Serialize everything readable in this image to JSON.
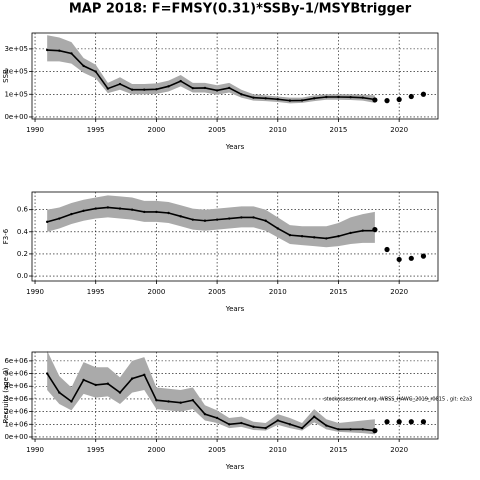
{
  "title": "MAP 2018: F=FMSY(0.31)*SSBy-1/MSYBtrigger",
  "chart_data": [
    {
      "type": "line",
      "ylabel": "SSB",
      "xlabel": "Years",
      "x": [
        1991,
        1992,
        1993,
        1994,
        1995,
        1996,
        1997,
        1998,
        1999,
        2000,
        2001,
        2002,
        2003,
        2004,
        2005,
        2006,
        2007,
        2008,
        2009,
        2010,
        2011,
        2012,
        2013,
        2014,
        2015,
        2016,
        2017,
        2018
      ],
      "values": [
        295000,
        292000,
        280000,
        225000,
        200000,
        125000,
        145000,
        120000,
        120000,
        122000,
        135000,
        158000,
        127000,
        128000,
        117000,
        128000,
        100000,
        85000,
        82000,
        78000,
        72000,
        73000,
        82000,
        88000,
        88000,
        87000,
        85000,
        77000
      ],
      "upper": [
        360000,
        350000,
        330000,
        260000,
        230000,
        150000,
        175000,
        145000,
        145000,
        148000,
        160000,
        185000,
        150000,
        150000,
        140000,
        150000,
        120000,
        100000,
        95000,
        90000,
        85000,
        85000,
        95000,
        100000,
        100000,
        100000,
        98000,
        95000
      ],
      "lower": [
        245000,
        245000,
        235000,
        195000,
        170000,
        105000,
        120000,
        100000,
        100000,
        102000,
        112000,
        135000,
        108000,
        108000,
        98000,
        108000,
        85000,
        72000,
        70000,
        66000,
        60000,
        62000,
        70000,
        76000,
        76000,
        75000,
        72000,
        62000
      ],
      "projection_x": [
        2018,
        2019,
        2020,
        2021,
        2022
      ],
      "projection_values": [
        75000,
        72000,
        77000,
        90000,
        100000
      ],
      "color": "#000000",
      "band_color": "#aaaaaa",
      "grid": true,
      "xlim": [
        1989.75,
        2023.2
      ],
      "xticks": [
        1990,
        1995,
        2000,
        2005,
        2010,
        2015,
        2020
      ],
      "ylim": [
        -9000,
        370000
      ],
      "yticks": [
        {
          "value": 0,
          "label": "0e+00"
        },
        {
          "value": 100000,
          "label": "1e+05"
        },
        {
          "value": 200000,
          "label": "2e+05"
        },
        {
          "value": 300000,
          "label": "3e+05"
        }
      ]
    },
    {
      "type": "line",
      "ylabel": "F3-6",
      "xlabel": "Years",
      "x": [
        1991,
        1992,
        1993,
        1994,
        1995,
        1996,
        1997,
        1998,
        1999,
        2000,
        2001,
        2002,
        2003,
        2004,
        2005,
        2006,
        2007,
        2008,
        2009,
        2010,
        2011,
        2012,
        2013,
        2014,
        2015,
        2016,
        2017,
        2018
      ],
      "values": [
        0.49,
        0.52,
        0.56,
        0.59,
        0.61,
        0.62,
        0.61,
        0.6,
        0.58,
        0.58,
        0.57,
        0.54,
        0.51,
        0.5,
        0.51,
        0.52,
        0.53,
        0.53,
        0.5,
        0.43,
        0.37,
        0.36,
        0.35,
        0.34,
        0.36,
        0.39,
        0.41,
        0.41
      ],
      "upper": [
        0.6,
        0.62,
        0.66,
        0.69,
        0.71,
        0.73,
        0.72,
        0.71,
        0.68,
        0.68,
        0.67,
        0.64,
        0.61,
        0.6,
        0.61,
        0.62,
        0.63,
        0.63,
        0.6,
        0.53,
        0.46,
        0.45,
        0.45,
        0.45,
        0.48,
        0.53,
        0.56,
        0.58
      ],
      "lower": [
        0.4,
        0.43,
        0.47,
        0.5,
        0.52,
        0.53,
        0.52,
        0.51,
        0.49,
        0.49,
        0.48,
        0.45,
        0.42,
        0.41,
        0.42,
        0.43,
        0.44,
        0.44,
        0.41,
        0.35,
        0.29,
        0.28,
        0.27,
        0.26,
        0.27,
        0.29,
        0.3,
        0.3
      ],
      "projection_x": [
        2018,
        2019,
        2020,
        2021,
        2022
      ],
      "projection_values": [
        0.42,
        0.24,
        0.15,
        0.16,
        0.18
      ],
      "color": "#000000",
      "band_color": "#aaaaaa",
      "grid": true,
      "xlim": [
        1989.75,
        2023.2
      ],
      "xticks": [
        1990,
        1995,
        2000,
        2005,
        2010,
        2015,
        2020
      ],
      "ylim": [
        -0.045,
        0.76
      ],
      "yticks": [
        {
          "value": 0,
          "label": "0.0"
        },
        0.2,
        0.4,
        0.6
      ]
    },
    {
      "type": "line",
      "ylabel": "Recruits (age 0)",
      "xlabel": "Years",
      "annotation": "stockassessment.org, WBSS_HAWG_2019_r0815 , git: e2a3",
      "x": [
        1991,
        1992,
        1993,
        1994,
        1995,
        1996,
        1997,
        1998,
        1999,
        2000,
        2001,
        2002,
        2003,
        2004,
        2005,
        2006,
        2007,
        2008,
        2009,
        2010,
        2011,
        2012,
        2013,
        2014,
        2015,
        2016,
        2017,
        2018
      ],
      "values": [
        5000000,
        3500000,
        2800000,
        4500000,
        4100000,
        4200000,
        3500000,
        4600000,
        4900000,
        2900000,
        2800000,
        2700000,
        2900000,
        1800000,
        1500000,
        1000000,
        1100000,
        800000,
        700000,
        1300000,
        1000000,
        700000,
        1600000,
        900000,
        600000,
        600000,
        600000,
        500000
      ],
      "upper": [
        6800000,
        4800000,
        3900000,
        5900000,
        5500000,
        5500000,
        4700000,
        6000000,
        6300000,
        3900000,
        3800000,
        3700000,
        3900000,
        2500000,
        2100000,
        1500000,
        1600000,
        1200000,
        1100000,
        1800000,
        1500000,
        1100000,
        2200000,
        1400000,
        1100000,
        1200000,
        1300000,
        1400000
      ],
      "lower": [
        3700000,
        2600000,
        2100000,
        3400000,
        3100000,
        3200000,
        2600000,
        3500000,
        3700000,
        2200000,
        2100000,
        2000000,
        2200000,
        1300000,
        1100000,
        700000,
        800000,
        550000,
        500000,
        950000,
        700000,
        500000,
        1150000,
        600000,
        400000,
        350000,
        300000,
        200000
      ],
      "projection_x": [
        2018,
        2019,
        2020,
        2021,
        2022
      ],
      "projection_values": [
        500000,
        1200000,
        1200000,
        1200000,
        1200000
      ],
      "color": "#000000",
      "band_color": "#aaaaaa",
      "grid": true,
      "xlim": [
        1989.75,
        2023.2
      ],
      "xticks": [
        1990,
        1995,
        2000,
        2005,
        2010,
        2015,
        2020
      ],
      "ylim": [
        -160000,
        6700000
      ],
      "yticks": [
        {
          "value": 0,
          "label": "0e+00"
        },
        {
          "value": 1000000,
          "label": "1e+06"
        },
        {
          "value": 2000000,
          "label": "2e+06"
        },
        {
          "value": 3000000,
          "label": "3e+06"
        },
        {
          "value": 4000000,
          "label": "4e+06"
        },
        {
          "value": 5000000,
          "label": "5e+06"
        },
        {
          "value": 6000000,
          "label": "6e+06"
        }
      ]
    }
  ]
}
